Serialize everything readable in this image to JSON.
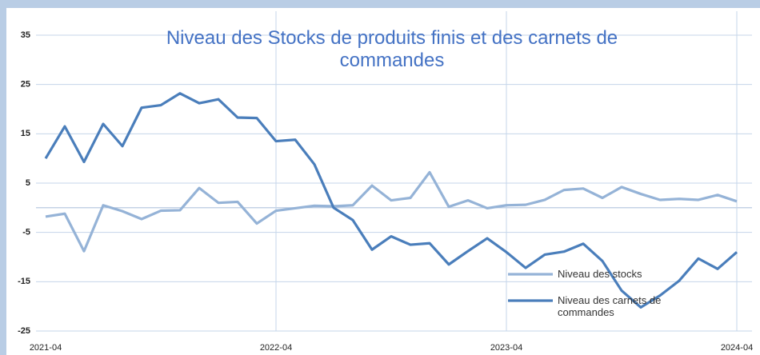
{
  "chart_data": {
    "type": "line",
    "title": "Niveau des Stocks de produits finis et des carnets de commandes",
    "categories": [
      "2021-04",
      null,
      null,
      null,
      null,
      null,
      null,
      null,
      null,
      null,
      null,
      null,
      "2022-04",
      null,
      null,
      null,
      null,
      null,
      null,
      null,
      null,
      null,
      null,
      null,
      "2023-04",
      null,
      null,
      null,
      null,
      null,
      null,
      null,
      null,
      null,
      null,
      null,
      "2024-04"
    ],
    "series": [
      {
        "name": "Niveau des stocks",
        "color": "#95b3d7",
        "values": [
          -1.8,
          -1.2,
          -8.8,
          0.5,
          -0.7,
          -2.3,
          -0.6,
          -0.5,
          4,
          1,
          1.2,
          -3.2,
          -0.6,
          -0.1,
          0.4,
          0.3,
          0.5,
          4.5,
          1.5,
          2,
          7.2,
          0.2,
          1.5,
          -0.1,
          0.5,
          0.6,
          1.6,
          3.6,
          3.9,
          2,
          4.2,
          2.8,
          1.6,
          1.8,
          1.6,
          2.6,
          1.3
        ]
      },
      {
        "name": "Niveau des carnets de commandes",
        "color": "#4a7ebb",
        "values": [
          10,
          16.5,
          9.3,
          17,
          12.5,
          20.3,
          20.8,
          23.2,
          21.2,
          22,
          18.3,
          18.2,
          13.5,
          13.8,
          8.8,
          0,
          -2.5,
          -8.5,
          -5.8,
          -7.5,
          -7.2,
          -11.5,
          -8.8,
          -6.2,
          -9,
          -12.2,
          -9.5,
          -8.9,
          -7.3,
          -10.8,
          -16.8,
          -20.2,
          -17.8,
          -14.8,
          -10.3,
          -12.4,
          -9
        ]
      }
    ],
    "ylim": [
      -25,
      35
    ],
    "yticks": [
      -25,
      -15,
      -5,
      5,
      15,
      25,
      35
    ],
    "grid": true
  }
}
